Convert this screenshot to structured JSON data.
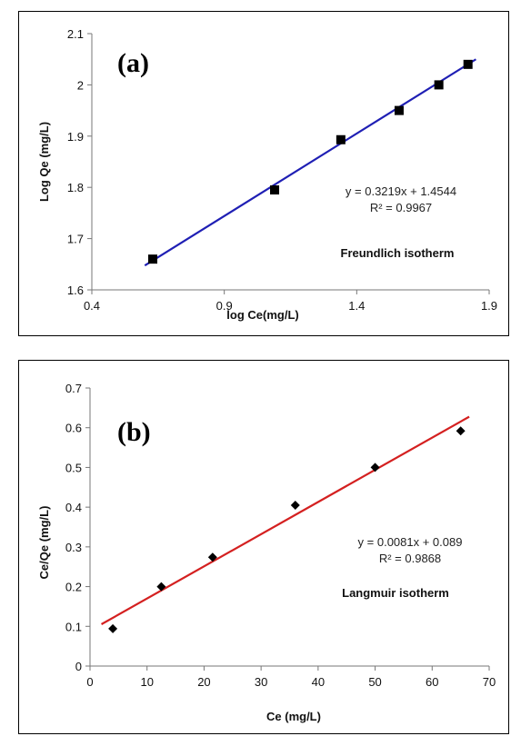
{
  "chart_data": [
    {
      "panel_label": "(a)",
      "type": "scatter",
      "xlabel": "log Ce(mg/L)",
      "ylabel": "Log Qe (mg/L)",
      "xlim": [
        0.4,
        1.9
      ],
      "ylim": [
        1.6,
        2.1
      ],
      "xticks": [
        0.4,
        0.9,
        1.4,
        1.9
      ],
      "xtick_labels": [
        "0.4",
        "0.9",
        "1.4",
        "1.9"
      ],
      "yticks": [
        1.6,
        1.7,
        1.8,
        1.9,
        2.0,
        2.1
      ],
      "ytick_labels": [
        "1.6",
        "1.7",
        "1.8",
        "1.9",
        "2",
        "2.1"
      ],
      "points": [
        {
          "x": 0.63,
          "y": 1.66
        },
        {
          "x": 1.09,
          "y": 1.795
        },
        {
          "x": 1.34,
          "y": 1.893
        },
        {
          "x": 1.56,
          "y": 1.95
        },
        {
          "x": 1.71,
          "y": 2.0
        },
        {
          "x": 1.82,
          "y": 2.04
        }
      ],
      "marker": "square",
      "trendline": {
        "slope": 0.3219,
        "intercept": 1.4544,
        "x_range": [
          0.6,
          1.85
        ],
        "color": "#1f1fb4"
      },
      "equation": "y = 0.3219x + 1.4544",
      "r_squared": "R² = 0.9967",
      "annotation": "Freundlich isotherm",
      "grid": false
    },
    {
      "panel_label": "(b)",
      "type": "scatter",
      "xlabel": "Ce (mg/L)",
      "ylabel": "Ce/Qe (mg/L)",
      "xlim": [
        0,
        70
      ],
      "ylim": [
        0,
        0.7
      ],
      "xticks": [
        0,
        10,
        20,
        30,
        40,
        50,
        60,
        70
      ],
      "xtick_labels": [
        "0",
        "10",
        "20",
        "30",
        "40",
        "50",
        "60",
        "70"
      ],
      "yticks": [
        0,
        0.1,
        0.2,
        0.3,
        0.4,
        0.5,
        0.6,
        0.7
      ],
      "ytick_labels": [
        "0",
        "0.1",
        "0.2",
        "0.3",
        "0.4",
        "0.5",
        "0.6",
        "0.7"
      ],
      "points": [
        {
          "x": 4,
          "y": 0.094
        },
        {
          "x": 12.5,
          "y": 0.2
        },
        {
          "x": 21.5,
          "y": 0.274
        },
        {
          "x": 36,
          "y": 0.405
        },
        {
          "x": 50,
          "y": 0.5
        },
        {
          "x": 65,
          "y": 0.592
        }
      ],
      "marker": "diamond",
      "trendline": {
        "slope": 0.0081,
        "intercept": 0.089,
        "x_range": [
          2,
          66.5
        ],
        "color": "#d42020"
      },
      "equation": "y = 0.0081x + 0.089",
      "r_squared": "R² = 0.9868",
      "annotation": "Langmuir isotherm",
      "grid": false
    }
  ]
}
